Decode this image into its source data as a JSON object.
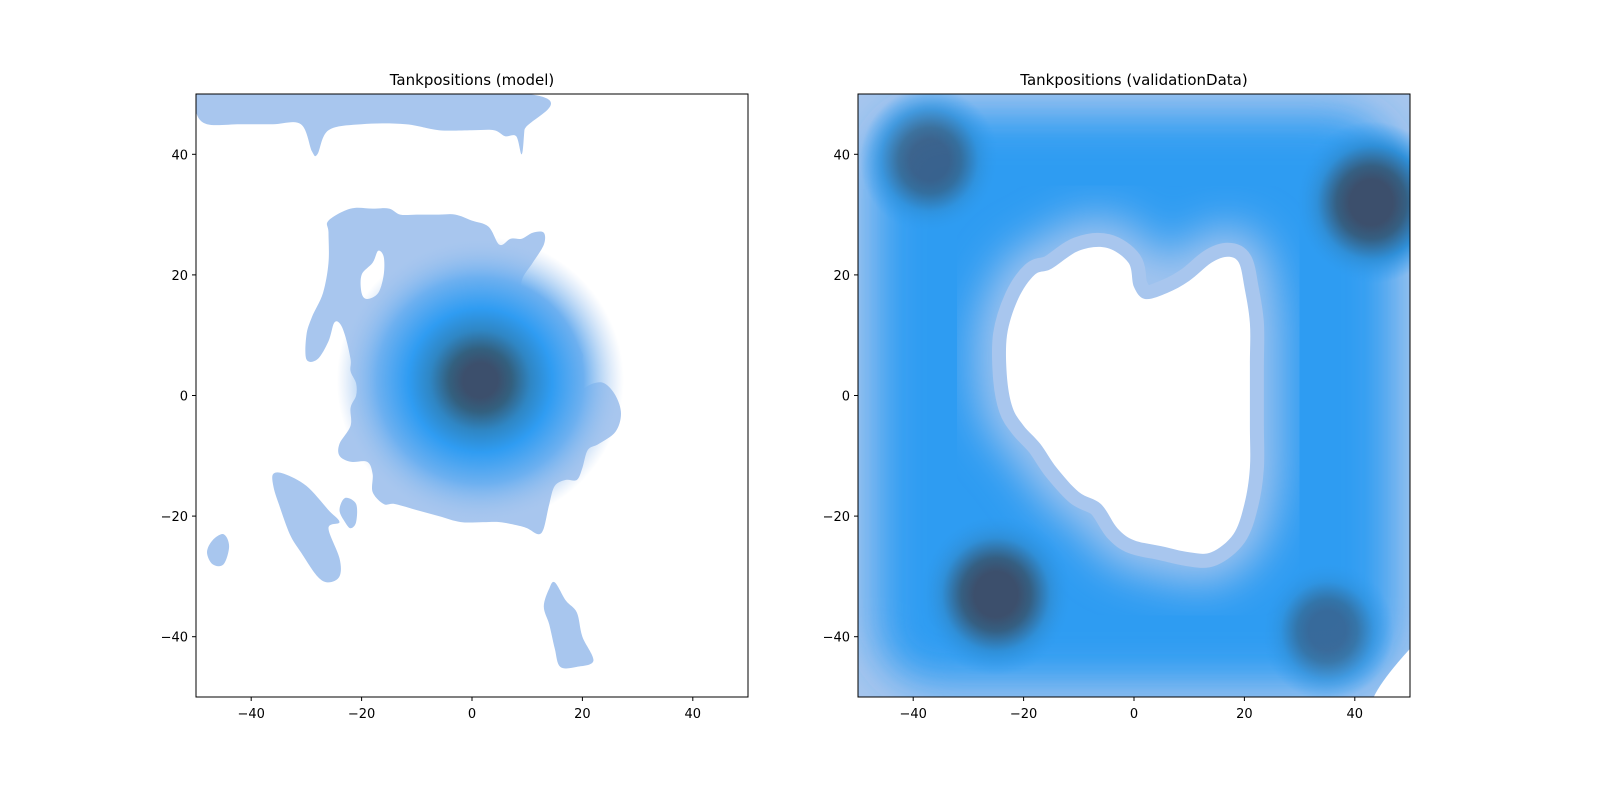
{
  "colors": {
    "light": "#a8c6ee",
    "mid": "#2f9cf2",
    "dark": "#3c4f6c",
    "frame": "#000000"
  },
  "chart_data": [
    {
      "type": "heatmap",
      "subtype": "kde-density-contour",
      "title": "Tankpositions (model)",
      "xlabel": "",
      "ylabel": "",
      "xlim": [
        -50,
        50
      ],
      "ylim": [
        -50,
        50
      ],
      "xticks": [
        -40,
        -20,
        0,
        20,
        40
      ],
      "yticks": [
        -40,
        -20,
        0,
        20,
        40
      ],
      "xtick_labels": [
        "−40",
        "−20",
        "0",
        "20",
        "40"
      ],
      "ytick_labels": [
        "−40",
        "−20",
        "0",
        "20",
        "40"
      ],
      "grid": false,
      "peak": [
        1.5,
        2.5
      ],
      "regions": [
        {
          "name": "upper-band",
          "level": 1,
          "outline": [
            [
              -50,
              50
            ],
            [
              10,
              50
            ],
            [
              9.5,
              44
            ],
            [
              9,
              40
            ],
            [
              8,
              43
            ],
            [
              6,
              43
            ],
            [
              4,
              44
            ],
            [
              0,
              44
            ],
            [
              -6,
              44
            ],
            [
              -12,
              45
            ],
            [
              -20,
              45
            ],
            [
              -26,
              44
            ],
            [
              -28,
              40
            ],
            [
              -29,
              40.5
            ],
            [
              -31,
              45
            ],
            [
              -36,
              45
            ],
            [
              -42,
              45
            ],
            [
              -48,
              45
            ],
            [
              -50,
              47
            ]
          ]
        },
        {
          "name": "central-blob",
          "level": 1,
          "outline": [
            [
              -26,
              29
            ],
            [
              -22,
              31
            ],
            [
              -18,
              31
            ],
            [
              -15,
              31
            ],
            [
              -13,
              30
            ],
            [
              -10,
              30
            ],
            [
              -6,
              30
            ],
            [
              -3,
              30
            ],
            [
              0,
              29
            ],
            [
              3,
              28
            ],
            [
              5,
              25
            ],
            [
              7,
              26
            ],
            [
              9,
              26
            ],
            [
              11,
              27
            ],
            [
              13,
              27
            ],
            [
              13,
              25
            ],
            [
              11,
              22
            ],
            [
              9,
              19
            ],
            [
              9,
              15
            ],
            [
              11,
              14
            ],
            [
              15,
              12
            ],
            [
              18,
              10
            ],
            [
              20,
              7
            ],
            [
              20,
              6
            ],
            [
              19.5,
              4
            ],
            [
              19,
              1
            ],
            [
              19,
              0
            ],
            [
              20,
              1
            ],
            [
              22,
              2
            ],
            [
              24,
              2
            ],
            [
              26,
              0
            ],
            [
              27,
              -3
            ],
            [
              26,
              -6
            ],
            [
              23,
              -8
            ],
            [
              21,
              -9
            ],
            [
              20,
              -12
            ],
            [
              19,
              -14
            ],
            [
              17,
              -14
            ],
            [
              15,
              -15
            ],
            [
              14,
              -18
            ],
            [
              13,
              -22
            ],
            [
              12,
              -23
            ],
            [
              10,
              -22
            ],
            [
              8,
              -21.5
            ],
            [
              5,
              -21
            ],
            [
              2,
              -21
            ],
            [
              -2,
              -21
            ],
            [
              -6,
              -20
            ],
            [
              -10,
              -19
            ],
            [
              -14,
              -18
            ],
            [
              -16,
              -18
            ],
            [
              -18,
              -16
            ],
            [
              -18,
              -13
            ],
            [
              -19,
              -11
            ],
            [
              -22,
              -11
            ],
            [
              -24,
              -10
            ],
            [
              -24,
              -8
            ],
            [
              -22,
              -5
            ],
            [
              -22,
              -2
            ],
            [
              -21,
              0
            ],
            [
              -21,
              2
            ],
            [
              -22,
              4
            ],
            [
              -22,
              6
            ],
            [
              -23,
              10
            ],
            [
              -24,
              12
            ],
            [
              -25,
              12
            ],
            [
              -26,
              9
            ],
            [
              -28,
              6
            ],
            [
              -30,
              6
            ],
            [
              -30,
              10
            ],
            [
              -29,
              13
            ],
            [
              -27,
              17
            ],
            [
              -26,
              22
            ],
            [
              -26,
              27
            ]
          ]
        },
        {
          "name": "hole-upper-left",
          "level": 0,
          "outline": [
            [
              -18,
              22
            ],
            [
              -17,
              24
            ],
            [
              -16,
              23
            ],
            [
              -16,
              20
            ],
            [
              -17,
              17
            ],
            [
              -19,
              16
            ],
            [
              -20,
              17
            ],
            [
              -20,
              20
            ]
          ]
        },
        {
          "name": "lower-left-arm",
          "level": 1,
          "outline": [
            [
              -36,
              -13
            ],
            [
              -34,
              -13
            ],
            [
              -30,
              -15
            ],
            [
              -26,
              -19
            ],
            [
              -24,
              -21
            ],
            [
              -26,
              -22
            ],
            [
              -24,
              -27
            ],
            [
              -24,
              -30
            ],
            [
              -26,
              -31
            ],
            [
              -28,
              -30
            ],
            [
              -31,
              -26
            ],
            [
              -33,
              -23
            ],
            [
              -35,
              -18
            ],
            [
              -36,
              -15
            ]
          ]
        },
        {
          "name": "lower-left-spot",
          "level": 1,
          "outline": [
            [
              -23,
              -17
            ],
            [
              -21,
              -18
            ],
            [
              -21,
              -21
            ],
            [
              -22,
              -22
            ],
            [
              -23,
              -21
            ],
            [
              -24,
              -19
            ]
          ]
        },
        {
          "name": "far-left-blob",
          "level": 1,
          "outline": [
            [
              -47,
              -24
            ],
            [
              -45,
              -23
            ],
            [
              -44,
              -25
            ],
            [
              -45,
              -28
            ],
            [
              -47,
              -28
            ],
            [
              -48,
              -26
            ]
          ]
        },
        {
          "name": "bottom-blob",
          "level": 1,
          "outline": [
            [
              15,
              -31
            ],
            [
              17,
              -34
            ],
            [
              19,
              -36
            ],
            [
              20,
              -40
            ],
            [
              22,
              -44
            ],
            [
              19,
              -45
            ],
            [
              16,
              -45
            ],
            [
              15,
              -42
            ],
            [
              14,
              -38
            ],
            [
              13,
              -35
            ],
            [
              14,
              -32
            ]
          ]
        }
      ]
    },
    {
      "type": "heatmap",
      "subtype": "kde-density-contour",
      "title": "Tankpositions (validationData)",
      "xlabel": "",
      "ylabel": "",
      "xlim": [
        -50,
        50
      ],
      "ylim": [
        -50,
        50
      ],
      "xticks": [
        -40,
        -20,
        0,
        20,
        40
      ],
      "yticks": [
        -40,
        -20,
        0,
        20,
        40
      ],
      "xtick_labels": [
        "−40",
        "−20",
        "0",
        "20",
        "40"
      ],
      "ytick_labels": [
        "−40",
        "−20",
        "0",
        "20",
        "40"
      ],
      "grid": false,
      "peaks": [
        {
          "center": [
            -25,
            -33
          ],
          "strength": 1.0
        },
        {
          "center": [
            43,
            32
          ],
          "strength": 1.0
        },
        {
          "center": [
            -37,
            39
          ],
          "strength": 0.75
        },
        {
          "center": [
            35,
            -39
          ],
          "strength": 0.65
        }
      ],
      "hole": [
        [
          -15,
          21
        ],
        [
          -10,
          24
        ],
        [
          -5,
          24.5
        ],
        [
          -1,
          22
        ],
        [
          0,
          18
        ],
        [
          2,
          16
        ],
        [
          6,
          17
        ],
        [
          10,
          19
        ],
        [
          14,
          22
        ],
        [
          17,
          23
        ],
        [
          19,
          22
        ],
        [
          20,
          18
        ],
        [
          21,
          12
        ],
        [
          21,
          5
        ],
        [
          21,
          -5
        ],
        [
          21,
          -12
        ],
        [
          20,
          -18
        ],
        [
          18,
          -23
        ],
        [
          14,
          -26
        ],
        [
          10,
          -26
        ],
        [
          5,
          -25
        ],
        [
          0,
          -24
        ],
        [
          -3,
          -22
        ],
        [
          -6,
          -18
        ],
        [
          -10,
          -16
        ],
        [
          -14,
          -12
        ],
        [
          -17,
          -8
        ],
        [
          -20,
          -5
        ],
        [
          -22,
          -2
        ],
        [
          -23,
          3
        ],
        [
          -23,
          10
        ],
        [
          -21,
          16
        ],
        [
          -18,
          20
        ]
      ]
    }
  ]
}
